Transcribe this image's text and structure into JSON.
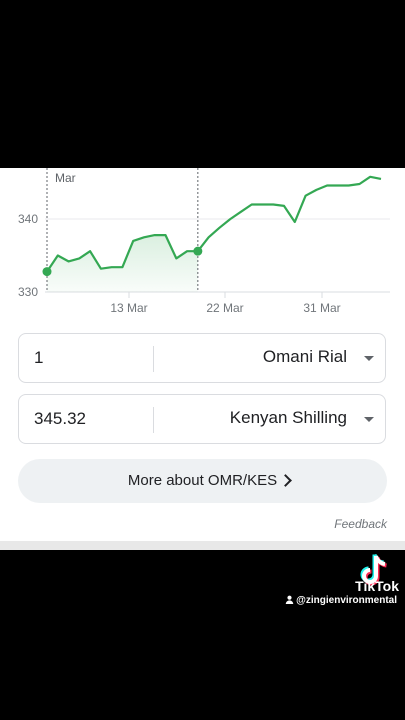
{
  "chart_data": {
    "type": "line",
    "x_ticks": [
      "13 Mar",
      "22 Mar",
      "31 Mar"
    ],
    "y_ticks": [
      330,
      340
    ],
    "top_date_label": "Mar",
    "ylim": [
      330,
      347
    ],
    "grid": "horizontal",
    "line_color": "#34a853",
    "series": [
      {
        "values": [
          332.8,
          335.0,
          334.2,
          334.6,
          335.6,
          333.2,
          333.4,
          333.4,
          337.0,
          337.5,
          337.8,
          337.8,
          334.6,
          335.6,
          335.6,
          337.5,
          338.8,
          340.0,
          341.0,
          342.0,
          342.0,
          342.0,
          341.8,
          339.6,
          343.2,
          344.0,
          344.6,
          344.6,
          344.6,
          344.8,
          345.8,
          345.5
        ]
      }
    ],
    "highlight_indices": [
      0,
      14
    ]
  },
  "converter": {
    "from_amount": "1",
    "from_currency": "Omani Rial",
    "to_amount": "345.32",
    "to_currency": "Kenyan Shilling"
  },
  "more_button": "More about OMR/KES",
  "feedback": "Feedback",
  "overlay": {
    "brand": "TikTok",
    "handle": "@zingienvironmental"
  }
}
